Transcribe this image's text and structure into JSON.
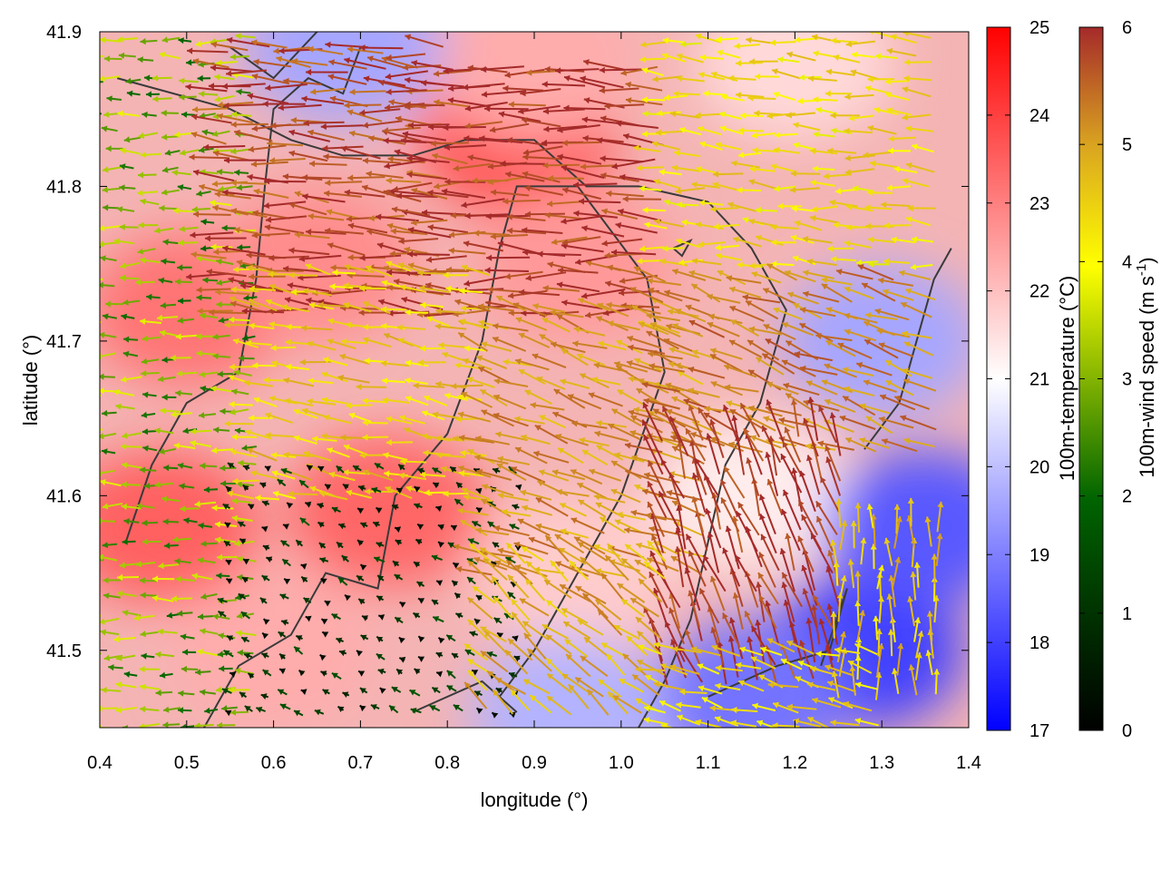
{
  "chart_data": {
    "type": "heatmap",
    "title": "",
    "xlabel": "longitude (°)",
    "ylabel": "latitude (°)",
    "xlim": [
      0.4,
      1.4
    ],
    "ylim": [
      41.45,
      41.9
    ],
    "xticks": [
      "0.4",
      "0.5",
      "0.6",
      "0.7",
      "0.8",
      "0.9",
      "1.0",
      "1.1",
      "1.2",
      "1.3",
      "1.4"
    ],
    "yticks": [
      "41.5",
      "41.6",
      "41.7",
      "41.8",
      "41.9"
    ],
    "grid": false,
    "temperature_colorbar": {
      "label": "100m-temperature (°C)",
      "range": [
        17,
        25
      ],
      "ticks": [
        "17",
        "18",
        "19",
        "20",
        "21",
        "22",
        "23",
        "24",
        "25"
      ],
      "colors": [
        "#0000ff",
        "#ffffff",
        "#ff0000"
      ]
    },
    "wind_colorbar": {
      "label": "100m-wind speed (m s-1)",
      "label_parts": [
        "100m-wind speed (m s",
        "-1",
        ")"
      ],
      "range": [
        0,
        6
      ],
      "ticks": [
        "0",
        "1",
        "2",
        "3",
        "4",
        "5",
        "6"
      ],
      "colors": [
        "#000000",
        "#006400",
        "#ffff00",
        "#daa520",
        "#a52a2a"
      ]
    },
    "temperature_regions": [
      {
        "lon": 0.47,
        "lat": 41.58,
        "temp": 23.5
      },
      {
        "lon": 0.5,
        "lat": 41.72,
        "temp": 23.2
      },
      {
        "lon": 0.65,
        "lat": 41.75,
        "temp": 22.8
      },
      {
        "lon": 0.73,
        "lat": 41.59,
        "temp": 23.4
      },
      {
        "lon": 0.88,
        "lat": 41.83,
        "temp": 23.6
      },
      {
        "lon": 0.95,
        "lat": 41.75,
        "temp": 22.6
      },
      {
        "lon": 0.9,
        "lat": 41.88,
        "temp": 22.3
      },
      {
        "lon": 1.2,
        "lat": 41.88,
        "temp": 21.6
      },
      {
        "lon": 1.15,
        "lat": 41.6,
        "temp": 21.3
      },
      {
        "lon": 0.6,
        "lat": 41.5,
        "temp": 22.3
      },
      {
        "lon": 0.95,
        "lat": 41.55,
        "temp": 21.8
      },
      {
        "lon": 1.28,
        "lat": 41.5,
        "temp": 18.0
      },
      {
        "lon": 1.35,
        "lat": 41.58,
        "temp": 18.4
      },
      {
        "lon": 1.15,
        "lat": 41.47,
        "temp": 18.8
      },
      {
        "lon": 1.3,
        "lat": 41.7,
        "temp": 19.6
      },
      {
        "lon": 0.94,
        "lat": 41.46,
        "temp": 19.8
      },
      {
        "lon": 0.68,
        "lat": 41.89,
        "temp": 19.6
      }
    ],
    "wind_regions": [
      {
        "lon_min": 0.4,
        "lon_max": 0.58,
        "lat_min": 41.45,
        "lat_max": 41.9,
        "dir": 180,
        "speed": 2.2
      },
      {
        "lon_min": 0.55,
        "lon_max": 0.8,
        "lat_min": 41.72,
        "lat_max": 41.9,
        "dir": 175,
        "speed": 5.6
      },
      {
        "lon_min": 0.78,
        "lon_max": 1.05,
        "lat_min": 41.72,
        "lat_max": 41.88,
        "dir": 178,
        "speed": 5.8
      },
      {
        "lon_min": 1.05,
        "lon_max": 1.38,
        "lat_min": 41.75,
        "lat_max": 41.9,
        "dir": 175,
        "speed": 3.5
      },
      {
        "lon_min": 0.58,
        "lon_max": 0.85,
        "lat_min": 41.6,
        "lat_max": 41.75,
        "dir": 170,
        "speed": 3.8
      },
      {
        "lon_min": 0.55,
        "lon_max": 0.9,
        "lat_min": 41.46,
        "lat_max": 41.62,
        "dir": 150,
        "speed": 0.6
      },
      {
        "lon_min": 0.85,
        "lon_max": 1.1,
        "lat_min": 41.55,
        "lat_max": 41.73,
        "dir": 160,
        "speed": 4.6
      },
      {
        "lon_min": 1.05,
        "lon_max": 1.38,
        "lat_min": 41.63,
        "lat_max": 41.75,
        "dir": 160,
        "speed": 4.9
      },
      {
        "lon_min": 1.05,
        "lon_max": 1.26,
        "lat_min": 41.48,
        "lat_max": 41.64,
        "dir": 110,
        "speed": 5.9
      },
      {
        "lon_min": 1.25,
        "lon_max": 1.38,
        "lat_min": 41.47,
        "lat_max": 41.58,
        "dir": 90,
        "speed": 3.9
      },
      {
        "lon_min": 0.85,
        "lon_max": 1.05,
        "lat_min": 41.46,
        "lat_max": 41.56,
        "dir": 140,
        "speed": 4.3
      },
      {
        "lon_min": 1.05,
        "lon_max": 1.3,
        "lat_min": 41.45,
        "lat_max": 41.5,
        "dir": 165,
        "speed": 3.6
      }
    ],
    "contours": [
      [
        [
          0.42,
          41.87
        ],
        [
          0.55,
          41.85
        ],
        [
          0.62,
          41.83
        ],
        [
          0.68,
          41.82
        ],
        [
          0.76,
          41.82
        ],
        [
          0.82,
          41.83
        ],
        [
          0.9,
          41.83
        ],
        [
          0.96,
          41.8
        ],
        [
          1.02,
          41.8
        ],
        [
          1.1,
          41.79
        ],
        [
          1.15,
          41.76
        ],
        [
          1.19,
          41.72
        ],
        [
          1.16,
          41.66
        ],
        [
          1.12,
          41.62
        ],
        [
          1.1,
          41.57
        ],
        [
          1.08,
          41.52
        ],
        [
          1.05,
          41.48
        ],
        [
          1.02,
          41.45
        ]
      ],
      [
        [
          0.43,
          41.57
        ],
        [
          0.46,
          41.62
        ],
        [
          0.5,
          41.66
        ],
        [
          0.56,
          41.68
        ],
        [
          0.58,
          41.74
        ],
        [
          0.59,
          41.8
        ],
        [
          0.6,
          41.85
        ],
        [
          0.64,
          41.87
        ],
        [
          0.68,
          41.86
        ],
        [
          0.7,
          41.89
        ]
      ],
      [
        [
          0.52,
          41.45
        ],
        [
          0.56,
          41.49
        ],
        [
          0.62,
          41.51
        ],
        [
          0.66,
          41.55
        ],
        [
          0.72,
          41.54
        ],
        [
          0.74,
          41.6
        ],
        [
          0.8,
          41.64
        ],
        [
          0.84,
          41.7
        ],
        [
          0.86,
          41.76
        ],
        [
          0.88,
          41.8
        ],
        [
          0.95,
          41.8
        ],
        [
          1.03,
          41.74
        ],
        [
          1.05,
          41.68
        ],
        [
          1.0,
          41.6
        ],
        [
          0.95,
          41.55
        ],
        [
          0.9,
          41.5
        ],
        [
          0.86,
          41.47
        ]
      ],
      [
        [
          0.76,
          41.46
        ],
        [
          0.84,
          41.48
        ],
        [
          0.88,
          41.46
        ]
      ],
      [
        [
          1.1,
          41.47
        ],
        [
          1.18,
          41.49
        ],
        [
          1.24,
          41.5
        ],
        [
          1.26,
          41.54
        ],
        [
          1.23,
          41.49
        ]
      ],
      [
        [
          1.28,
          41.63
        ],
        [
          1.32,
          41.66
        ],
        [
          1.34,
          41.7
        ],
        [
          1.36,
          41.74
        ],
        [
          1.38,
          41.76
        ]
      ],
      [
        [
          0.55,
          41.89
        ],
        [
          0.6,
          41.87
        ],
        [
          0.65,
          41.9
        ]
      ],
      [
        [
          1.06,
          41.76
        ],
        [
          1.08,
          41.765
        ],
        [
          1.07,
          41.755
        ],
        [
          1.06,
          41.76
        ]
      ]
    ]
  }
}
